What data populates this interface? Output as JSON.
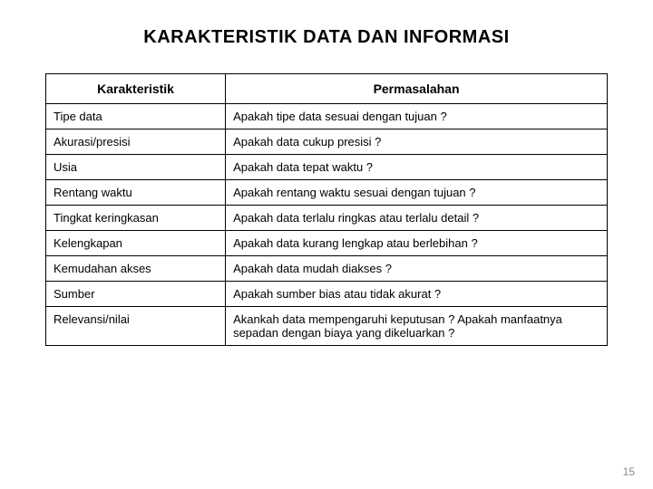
{
  "title": "KARAKTERISTIK DATA DAN INFORMASI",
  "table": {
    "columns": [
      "Karakteristik",
      "Permasalahan"
    ],
    "col_widths_pct": [
      32,
      68
    ],
    "header_fontsize": 14,
    "cell_fontsize": 13,
    "border_color": "#000000",
    "background_color": "#ffffff",
    "text_color": "#000000",
    "rows": [
      [
        "Tipe data",
        "Apakah tipe data sesuai dengan tujuan ?"
      ],
      [
        "Akurasi/presisi",
        "Apakah data cukup presisi ?"
      ],
      [
        "Usia",
        "Apakah data tepat waktu ?"
      ],
      [
        "Rentang waktu",
        "Apakah rentang waktu sesuai dengan tujuan ?"
      ],
      [
        "Tingkat keringkasan",
        "Apakah data terlalu ringkas atau terlalu detail ?"
      ],
      [
        "Kelengkapan",
        "Apakah data kurang lengkap atau berlebihan ?"
      ],
      [
        "Kemudahan akses",
        "Apakah data mudah diakses ?"
      ],
      [
        "Sumber",
        "Apakah sumber bias atau tidak akurat ?"
      ],
      [
        "Relevansi/nilai",
        "Akankah data mempengaruhi keputusan ? Apakah manfaatnya sepadan dengan biaya yang dikeluarkan ?"
      ]
    ]
  },
  "page_number": "15",
  "title_fontsize": 20,
  "page_number_color": "#8a8a8a"
}
